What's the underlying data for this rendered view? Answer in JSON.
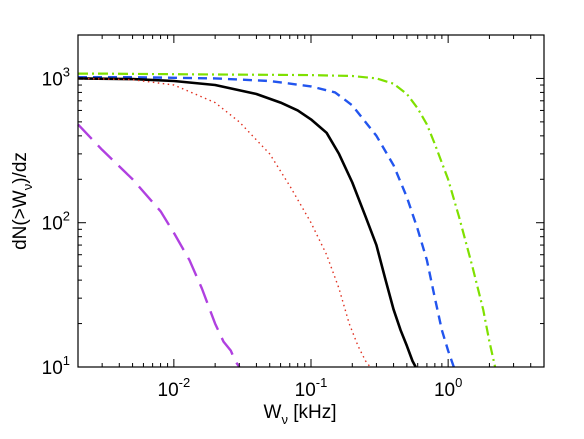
{
  "chart_data": {
    "type": "line",
    "title": "",
    "xlabel": {
      "main": "W",
      "sub": "ν",
      "rest": " [kHz]"
    },
    "ylabel": {
      "pre": "dN(>W",
      "sub": "ν",
      "post": ")/dz"
    },
    "xscale": "log",
    "yscale": "log",
    "xlim": [
      0.002,
      5
    ],
    "ylim": [
      10,
      2000
    ],
    "grid": false,
    "xticks": [
      {
        "value": 0.01,
        "base": "10",
        "exp": "-2"
      },
      {
        "value": 0.1,
        "base": "10",
        "exp": "-1"
      },
      {
        "value": 1,
        "base": "10",
        "exp": "0"
      }
    ],
    "yticks": [
      {
        "value": 10,
        "base": "10",
        "exp": "1"
      },
      {
        "value": 100,
        "base": "10",
        "exp": "2"
      },
      {
        "value": 1000,
        "base": "10",
        "exp": "3"
      }
    ],
    "series": [
      {
        "color": "#7fe000",
        "style": "dashdot",
        "x": [
          0.002,
          0.003,
          0.005,
          0.01,
          0.02,
          0.05,
          0.1,
          0.2,
          0.3,
          0.4,
          0.5,
          0.6,
          0.7,
          0.8,
          1.0,
          1.2,
          1.5,
          1.8,
          2.0,
          2.2
        ],
        "y": [
          1080,
          1080,
          1075,
          1070,
          1065,
          1060,
          1055,
          1040,
          1000,
          920,
          780,
          620,
          480,
          350,
          200,
          110,
          50,
          25,
          15,
          10
        ]
      },
      {
        "color": "#2255ee",
        "style": "dashed",
        "x": [
          0.002,
          0.005,
          0.01,
          0.02,
          0.05,
          0.1,
          0.15,
          0.2,
          0.3,
          0.4,
          0.5,
          0.6,
          0.7,
          0.8,
          0.9,
          1.0,
          1.1
        ],
        "y": [
          1020,
          1020,
          1010,
          1000,
          960,
          880,
          800,
          650,
          400,
          250,
          150,
          90,
          55,
          30,
          18,
          13,
          10
        ]
      },
      {
        "color": "#000000",
        "style": "solid",
        "x": [
          0.002,
          0.005,
          0.01,
          0.02,
          0.04,
          0.06,
          0.08,
          0.1,
          0.13,
          0.16,
          0.2,
          0.25,
          0.3,
          0.35,
          0.4,
          0.45,
          0.5,
          0.55,
          0.58
        ],
        "y": [
          1000,
          990,
          960,
          900,
          780,
          680,
          600,
          520,
          420,
          300,
          190,
          110,
          70,
          40,
          25,
          18,
          14,
          11,
          10
        ]
      },
      {
        "color": "#e03020",
        "style": "dotted",
        "x": [
          0.002,
          0.005,
          0.01,
          0.02,
          0.03,
          0.05,
          0.07,
          0.1,
          0.13,
          0.16,
          0.19,
          0.22,
          0.25,
          0.27
        ],
        "y": [
          1000,
          980,
          900,
          680,
          500,
          300,
          180,
          100,
          60,
          35,
          20,
          14,
          11,
          10
        ]
      },
      {
        "color": "#b040e0",
        "style": "longdash",
        "x": [
          0.002,
          0.003,
          0.005,
          0.008,
          0.01,
          0.013,
          0.016,
          0.02,
          0.023,
          0.026,
          0.028,
          0.03
        ],
        "y": [
          480,
          320,
          200,
          120,
          85,
          55,
          35,
          20,
          15,
          13,
          11,
          10
        ]
      }
    ]
  }
}
